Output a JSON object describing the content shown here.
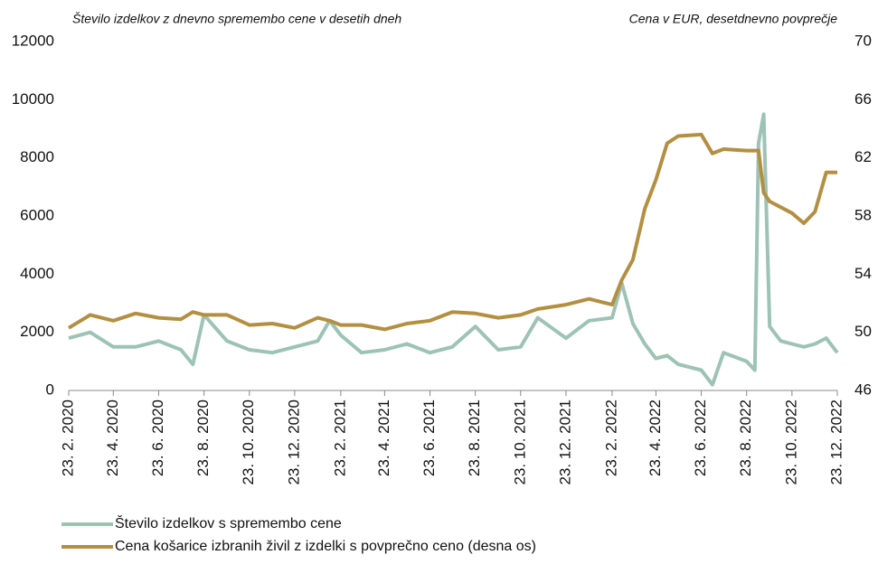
{
  "chart_data": {
    "type": "line",
    "y_label": "Število izdelkov z dnevno spremembo cene v desetih dneh",
    "y2_label": "Cena v EUR, desetdnevno povprečje",
    "x": [
      "23. 2. 2020",
      "23. 3. 2020",
      "23. 4. 2020",
      "23. 5. 2020",
      "23. 6. 2020",
      "23. 7. 2020",
      "8. 8. 2020",
      "23. 8. 2020",
      "23. 9. 2020",
      "23. 10. 2020",
      "23. 11. 2020",
      "23. 12. 2020",
      "23. 1. 2021",
      "8. 2. 2021",
      "23. 2. 2021",
      "23. 3. 2021",
      "23. 4. 2021",
      "23. 5. 2021",
      "23. 6. 2021",
      "23. 7. 2021",
      "23. 8. 2021",
      "23. 9. 2021",
      "23. 10. 2021",
      "15. 11. 2021",
      "23. 12. 2021",
      "23. 1. 2022",
      "23. 2. 2022",
      "8. 3. 2022",
      "23. 3. 2022",
      "8. 4. 2022",
      "23. 4. 2022",
      "8. 5. 2022",
      "23. 5. 2022",
      "23. 6. 2022",
      "8. 7. 2022",
      "23. 7. 2022",
      "23. 8. 2022",
      "3. 9. 2022",
      "8. 9. 2022",
      "15. 9. 2022",
      "23. 9. 2022",
      "8. 10. 2022",
      "23. 10. 2022",
      "8. 11. 2022",
      "23. 11. 2022",
      "8. 12. 2022",
      "23. 12. 2022"
    ],
    "series": [
      {
        "name": "Število izdelkov s spremembo cene",
        "color": "#9dc3b5",
        "values": [
          1800,
          2000,
          1500,
          1500,
          1700,
          1400,
          900,
          2600,
          1700,
          1400,
          1300,
          1500,
          1700,
          2400,
          1900,
          1300,
          1400,
          1600,
          1300,
          1500,
          2200,
          1400,
          1500,
          2500,
          1800,
          2400,
          2500,
          3700,
          2300,
          1600,
          1100,
          1200,
          900,
          700,
          200,
          1300,
          1000,
          700,
          8500,
          9500,
          2200,
          1700,
          1600,
          1500,
          1600,
          1800,
          1300
        ]
      },
      {
        "name": "Cena košarice izbranih živil z izdelki s povprečno ceno (desna os)",
        "color": "#b38f42",
        "axis": "y2",
        "values": [
          50.3,
          51.2,
          50.8,
          51.3,
          51.0,
          50.9,
          51.4,
          51.2,
          51.2,
          50.5,
          50.6,
          50.3,
          51.0,
          50.8,
          50.5,
          50.5,
          50.2,
          50.6,
          50.8,
          51.4,
          51.3,
          51.0,
          51.2,
          51.6,
          51.9,
          52.3,
          51.9,
          53.6,
          55.0,
          58.5,
          60.5,
          63.0,
          63.5,
          63.6,
          62.3,
          62.6,
          62.5,
          62.5,
          62.5,
          59.6,
          59.0,
          58.6,
          58.2,
          57.5,
          58.3,
          61.0,
          61.0
        ]
      }
    ],
    "xlim": [
      "23. 2. 2020",
      "23. 12. 2022"
    ],
    "xticks": [
      "23. 2. 2020",
      "23. 4. 2020",
      "23. 6. 2020",
      "23. 8. 2020",
      "23. 10. 2020",
      "23. 12. 2020",
      "23. 2. 2021",
      "23. 4. 2021",
      "23. 6. 2021",
      "23. 8. 2021",
      "23. 10. 2021",
      "23. 12. 2021",
      "23. 2. 2022",
      "23. 4. 2022",
      "23. 6. 2022",
      "23. 8. 2022",
      "23. 10. 2022",
      "23. 12. 2022"
    ],
    "ylim": [
      0,
      12000
    ],
    "yticks": [
      0,
      2000,
      4000,
      6000,
      8000,
      10000,
      12000
    ],
    "y2lim": [
      46,
      70
    ],
    "y2ticks": [
      46,
      50,
      54,
      58,
      62,
      66,
      70
    ],
    "grid": false,
    "legend": "bottom"
  }
}
